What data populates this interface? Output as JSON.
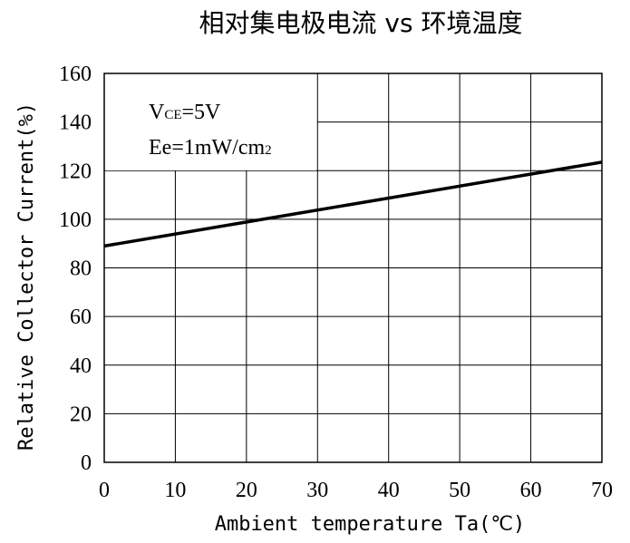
{
  "chart_data": {
    "type": "line",
    "title": "相对集电极电流 vs 环境温度",
    "xlabel": "Ambient temperature Ta(℃)",
    "ylabel": "Relative Collector Current(%)",
    "xlim": [
      0,
      70
    ],
    "ylim": [
      0,
      160
    ],
    "xticks": [
      0,
      10,
      20,
      30,
      40,
      50,
      60,
      70
    ],
    "yticks": [
      0,
      20,
      40,
      60,
      80,
      100,
      120,
      140,
      160
    ],
    "grid": true,
    "annotations": [
      {
        "main": "V",
        "sub": "CE",
        "rest": "=5V"
      },
      {
        "main": "Ee=1mW/cm",
        "sub": "2",
        "rest": ""
      }
    ],
    "series": [
      {
        "x": [
          0,
          70
        ],
        "y": [
          89,
          123.5
        ],
        "color": "#000000"
      }
    ]
  }
}
